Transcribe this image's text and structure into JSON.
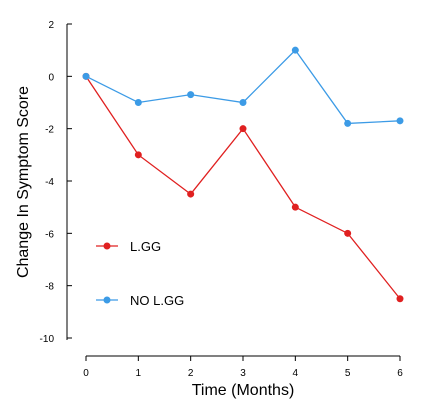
{
  "chart_data": {
    "type": "line",
    "xlabel": "Time (Months)",
    "ylabel": "Change In Symptom Score",
    "x": [
      0,
      1,
      2,
      3,
      4,
      5,
      6
    ],
    "xlim": [
      0,
      6
    ],
    "ylim": [
      -10,
      2
    ],
    "xticks": [
      "0",
      "1",
      "2",
      "3",
      "4",
      "5",
      "6"
    ],
    "yticks": [
      "2",
      "0",
      "-2",
      "-4",
      "-6",
      "-8",
      "-10"
    ],
    "grid": false,
    "legend_position": "lower-left",
    "series": [
      {
        "name": "L.GG",
        "color": "#e02020",
        "values": [
          0,
          -3,
          -4.5,
          -2,
          -5,
          -6,
          -8.5
        ]
      },
      {
        "name": "NO L.GG",
        "color": "#3c9be6",
        "values": [
          0,
          -1,
          -0.7,
          -1,
          1,
          -1.8,
          -1.7
        ]
      }
    ]
  }
}
